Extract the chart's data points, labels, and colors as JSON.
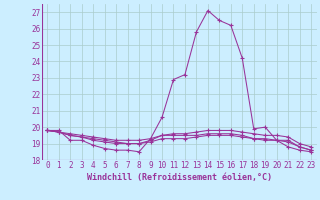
{
  "bg_color": "#cceeff",
  "grid_color": "#aacccc",
  "line_color": "#993399",
  "marker": "+",
  "xlabel": "Windchill (Refroidissement éolien,°C)",
  "xlabel_color": "#993399",
  "tick_color": "#993399",
  "ylim": [
    18,
    27.5
  ],
  "xlim": [
    -0.5,
    23.5
  ],
  "yticks": [
    18,
    19,
    20,
    21,
    22,
    23,
    24,
    25,
    26,
    27
  ],
  "xticks": [
    0,
    1,
    2,
    3,
    4,
    5,
    6,
    7,
    8,
    9,
    10,
    11,
    12,
    13,
    14,
    15,
    16,
    17,
    18,
    19,
    20,
    21,
    22,
    23
  ],
  "series": [
    [
      19.8,
      19.8,
      19.2,
      19.2,
      18.9,
      18.7,
      18.6,
      18.6,
      18.5,
      19.3,
      20.6,
      22.9,
      23.2,
      25.8,
      27.1,
      26.5,
      26.2,
      24.2,
      19.9,
      20.0,
      19.2,
      18.8,
      18.6,
      18.5
    ],
    [
      19.8,
      19.7,
      19.5,
      19.4,
      19.2,
      19.1,
      19.0,
      19.0,
      19.0,
      19.2,
      19.5,
      19.5,
      19.5,
      19.5,
      19.6,
      19.6,
      19.6,
      19.5,
      19.3,
      19.3,
      19.2,
      19.2,
      18.8,
      18.6
    ],
    [
      19.8,
      19.7,
      19.6,
      19.5,
      19.4,
      19.3,
      19.2,
      19.2,
      19.2,
      19.3,
      19.5,
      19.6,
      19.6,
      19.7,
      19.8,
      19.8,
      19.8,
      19.7,
      19.6,
      19.5,
      19.5,
      19.4,
      19.0,
      18.8
    ],
    [
      19.8,
      19.7,
      19.5,
      19.4,
      19.3,
      19.2,
      19.1,
      19.0,
      19.0,
      19.1,
      19.3,
      19.3,
      19.3,
      19.4,
      19.5,
      19.5,
      19.5,
      19.4,
      19.3,
      19.2,
      19.2,
      19.1,
      18.8,
      18.6
    ]
  ],
  "tick_fontsize": 5.5,
  "xlabel_fontsize": 6.0
}
